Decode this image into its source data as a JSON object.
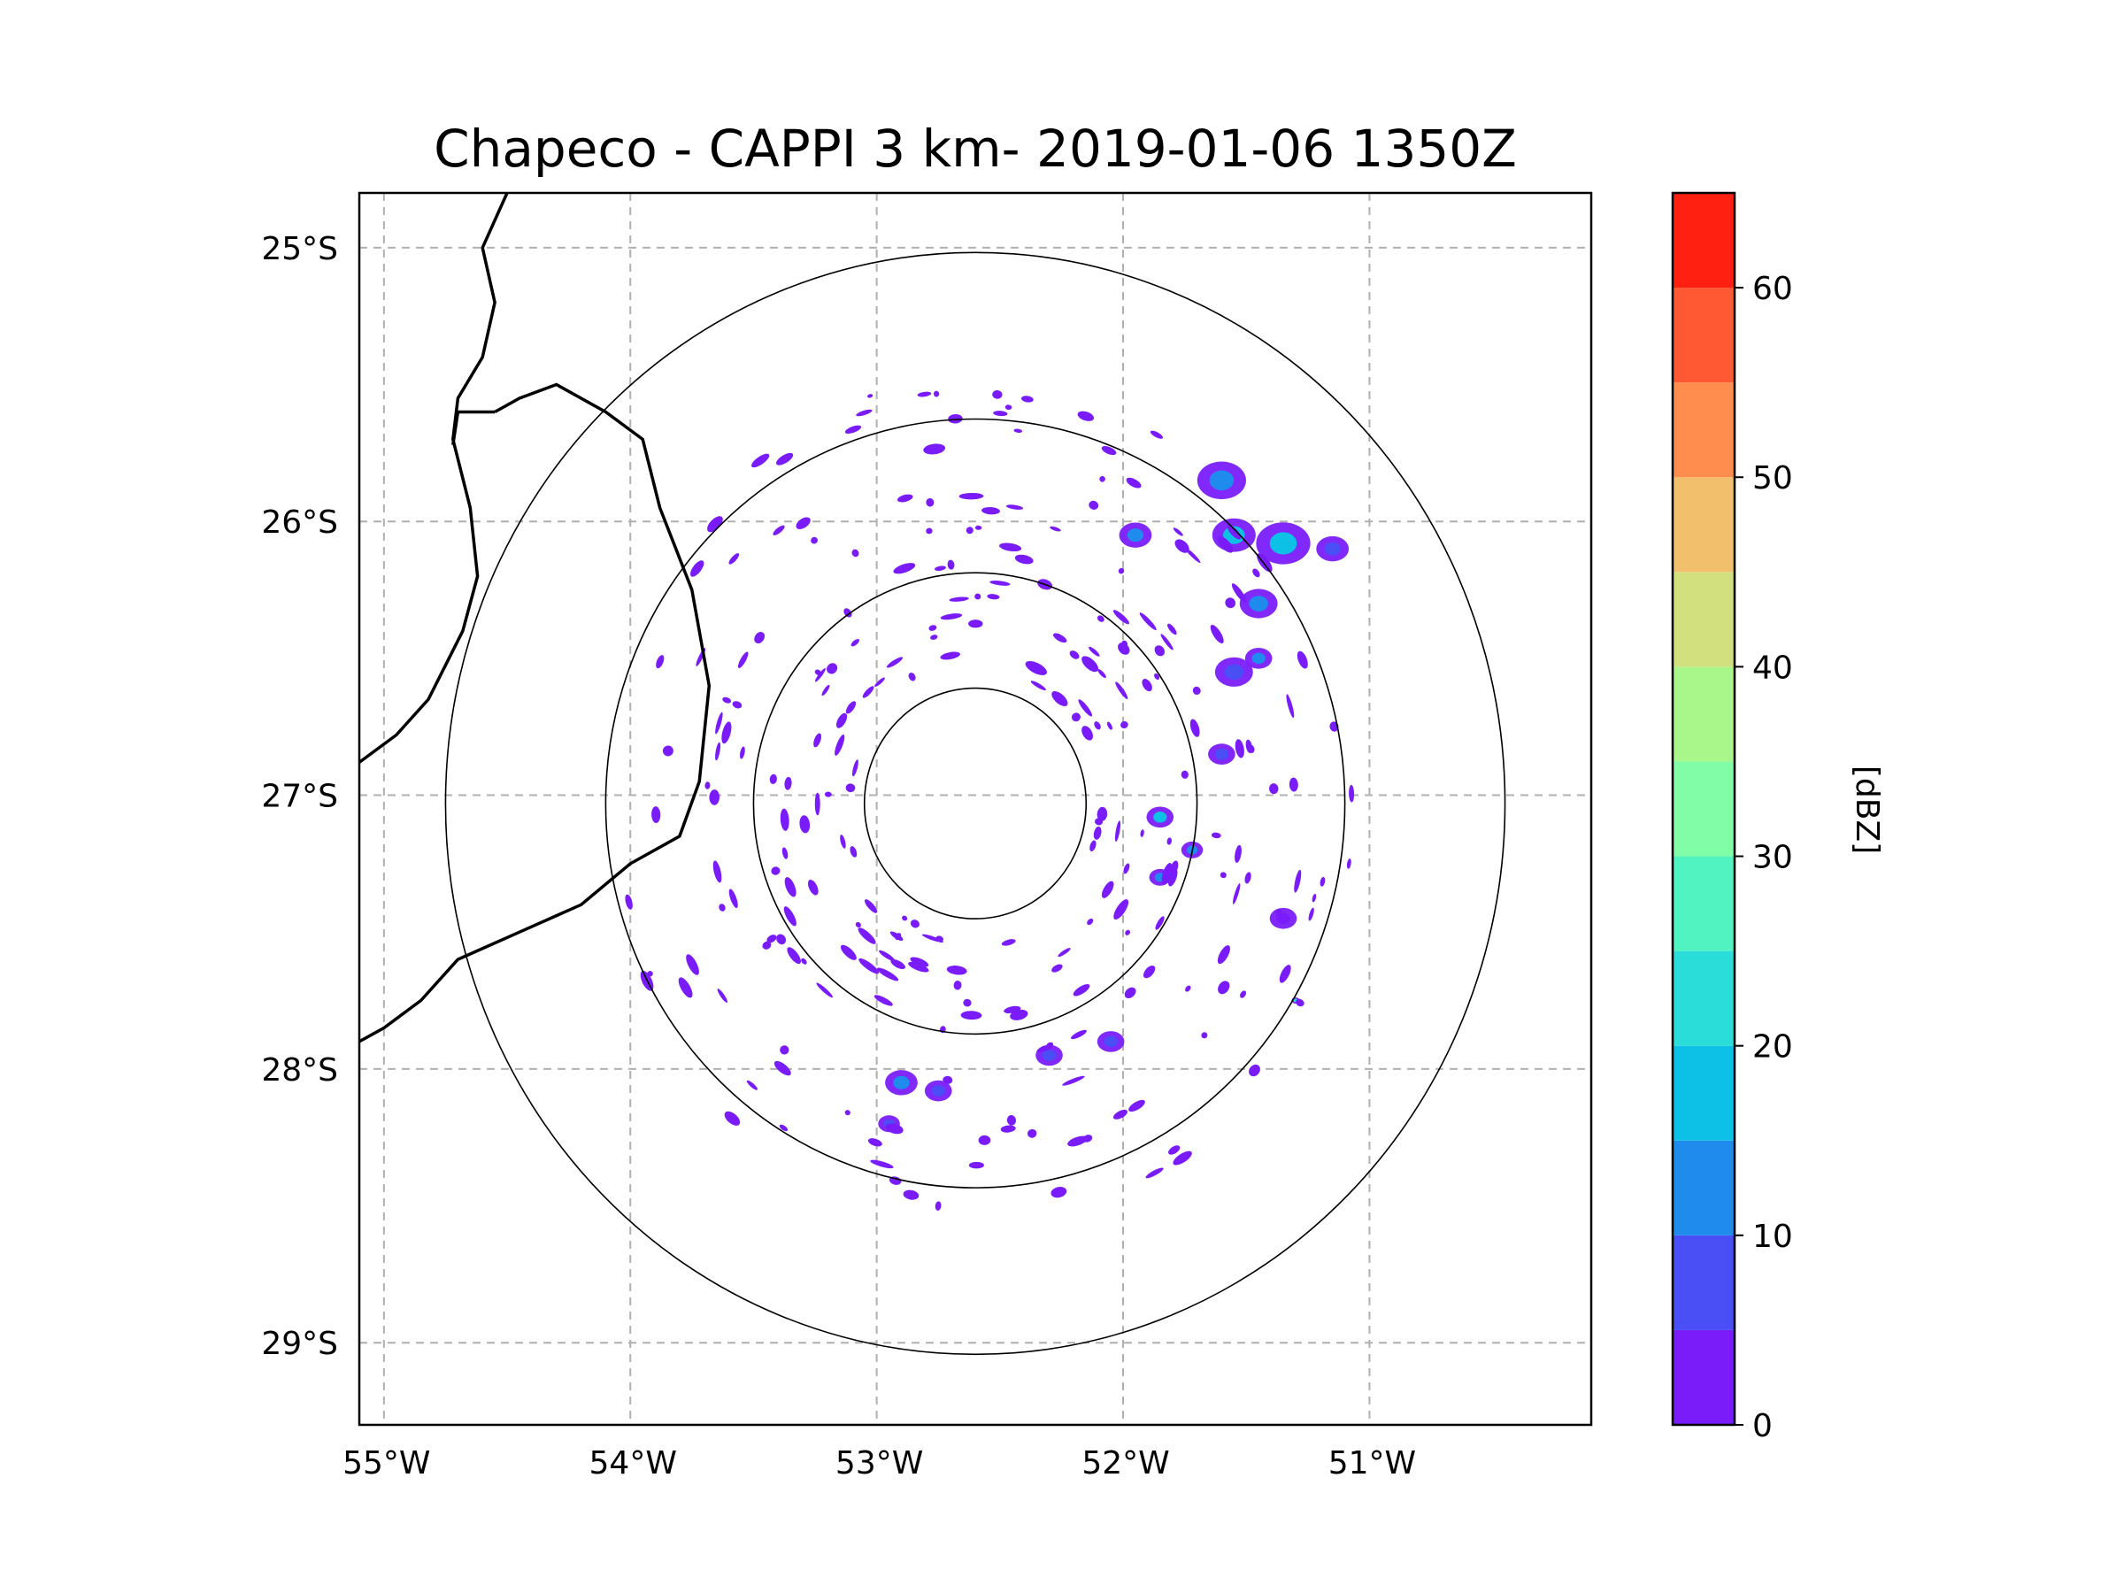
{
  "chart_data": {
    "type": "heatmap",
    "title": "Chapeco - CAPPI 3 km- 2019-01-06 1350Z",
    "radar_site": "Chapeco",
    "product": "CAPPI 3 km",
    "datetime": "2019-01-06 1350Z",
    "radar_center": {
      "lon": -52.6,
      "lat": -27.03
    },
    "range_rings_deg": [
      0.45,
      0.9,
      1.5,
      2.15
    ],
    "xlim": [
      -55.1,
      -50.1
    ],
    "ylim": [
      -29.3,
      -24.8
    ],
    "lon_ticks": [
      -55,
      -54,
      -53,
      -52,
      -51
    ],
    "lon_tick_labels": [
      "55°W",
      "54°W",
      "53°W",
      "52°W",
      "51°W"
    ],
    "lat_ticks": [
      -25,
      -26,
      -27,
      -28,
      -29
    ],
    "lat_tick_labels": [
      "25°S",
      "26°S",
      "27°S",
      "28°S",
      "29°S"
    ],
    "gridlines": true,
    "colorbar": {
      "label": "[dBZ]",
      "vmin": 0,
      "vmax": 65,
      "step": 5,
      "ticks": [
        0,
        10,
        20,
        30,
        40,
        50,
        60
      ],
      "tick_labels": [
        "0",
        "10",
        "20",
        "30",
        "40",
        "50",
        "60"
      ],
      "colors": [
        "#7a1cfa",
        "#4a4ef5",
        "#1f8ced",
        "#0cc0e6",
        "#2bddd8",
        "#51f3c0",
        "#81fca7",
        "#a9f78a",
        "#d3e07e",
        "#f2c06c",
        "#ff8e4e",
        "#ff5934",
        "#ff2012"
      ]
    },
    "echoes": [
      {
        "lon": -51.6,
        "lat": -25.85,
        "dbz": 14,
        "r": 0.09
      },
      {
        "lon": -51.55,
        "lat": -26.05,
        "dbz": 17,
        "r": 0.08
      },
      {
        "lon": -51.35,
        "lat": -26.08,
        "dbz": 18,
        "r": 0.1
      },
      {
        "lon": -51.15,
        "lat": -26.1,
        "dbz": 8,
        "r": 0.06
      },
      {
        "lon": -51.45,
        "lat": -26.3,
        "dbz": 14,
        "r": 0.07
      },
      {
        "lon": -51.95,
        "lat": -26.05,
        "dbz": 12,
        "r": 0.06
      },
      {
        "lon": -51.55,
        "lat": -26.55,
        "dbz": 8,
        "r": 0.07
      },
      {
        "lon": -51.45,
        "lat": -26.5,
        "dbz": 10,
        "r": 0.05
      },
      {
        "lon": -51.85,
        "lat": -27.08,
        "dbz": 16,
        "r": 0.05
      },
      {
        "lon": -51.72,
        "lat": -27.2,
        "dbz": 12,
        "r": 0.04
      },
      {
        "lon": -51.85,
        "lat": -27.3,
        "dbz": 14,
        "r": 0.04
      },
      {
        "lon": -52.9,
        "lat": -28.05,
        "dbz": 10,
        "r": 0.06
      },
      {
        "lon": -52.75,
        "lat": -28.08,
        "dbz": 8,
        "r": 0.05
      },
      {
        "lon": -52.95,
        "lat": -28.2,
        "dbz": 8,
        "r": 0.04
      },
      {
        "lon": -52.3,
        "lat": -27.95,
        "dbz": 6,
        "r": 0.05
      },
      {
        "lon": -52.05,
        "lat": -27.9,
        "dbz": 6,
        "r": 0.05
      },
      {
        "lon": -51.6,
        "lat": -26.85,
        "dbz": 6,
        "r": 0.05
      },
      {
        "lon": -51.35,
        "lat": -27.45,
        "dbz": 4,
        "r": 0.05
      },
      {
        "lon": -51.3,
        "lat": -27.75,
        "dbz": 22,
        "r": 0.015
      }
    ]
  }
}
